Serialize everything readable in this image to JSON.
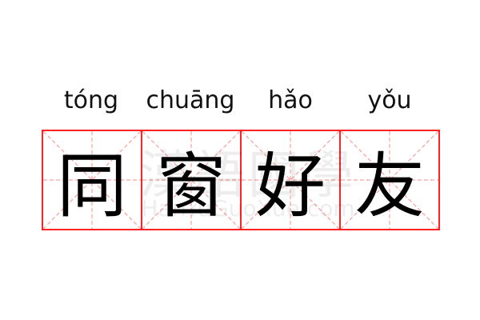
{
  "word": {
    "syllables": [
      {
        "pinyin": "tóng",
        "hanzi": "同"
      },
      {
        "pinyin": "chuāng",
        "hanzi": "窗"
      },
      {
        "pinyin": "hǎo",
        "hanzi": "好"
      },
      {
        "pinyin": "yǒu",
        "hanzi": "友"
      }
    ]
  },
  "watermark": {
    "chinese": "漢語國學",
    "latin": "HanYuGuoXue.com"
  },
  "colors": {
    "grid_border": "#ff2222",
    "guide_lines": "#f8a0a0",
    "text": "#000000"
  }
}
